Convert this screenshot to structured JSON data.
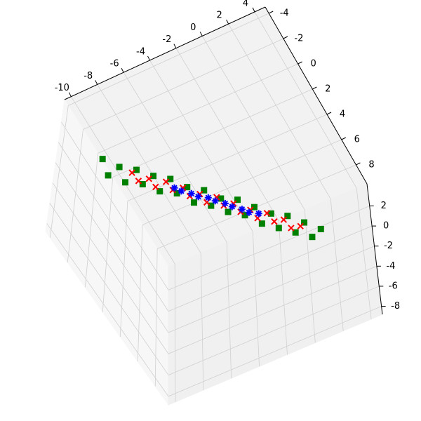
{
  "chart_data": {
    "type": "scatter3d",
    "xlim": [
      -10.5,
      4.8
    ],
    "ylim": [
      -4.5,
      9.5
    ],
    "zlim": [
      -8.8,
      4.2
    ],
    "xticks": [
      -10,
      -8,
      -6,
      -4,
      -2,
      0,
      2,
      4
    ],
    "yticks": [
      -4,
      -2,
      0,
      2,
      4,
      6,
      8
    ],
    "zticks": [
      2,
      0,
      -2,
      -4,
      -6,
      -8
    ],
    "grid": true,
    "series": [
      {
        "color": "green",
        "marker": "s",
        "x": [
          -9.0,
          -8.6,
          -8.2,
          -7.8,
          -7.4,
          -7.0,
          -6.6,
          -6.2,
          -5.8,
          -5.4,
          -5.0,
          -4.6,
          -4.2,
          -3.8,
          -3.4,
          -3.0,
          -2.6,
          -2.2,
          -1.8,
          -1.4,
          -1.0,
          -0.6,
          -0.2,
          0.2,
          0.6,
          1.0,
          1.4
        ],
        "y": [
          -1.6,
          -1.4,
          -0.8,
          -0.6,
          0.0,
          0.2,
          0.8,
          1.0,
          1.6,
          1.8,
          2.4,
          2.6,
          3.2,
          3.4,
          4.0,
          4.2,
          4.8,
          5.0,
          5.6,
          5.8,
          6.4,
          6.6,
          7.2,
          7.4,
          8.0,
          8.2,
          8.8
        ],
        "z": [
          0.9,
          -0.7,
          0.6,
          -0.9,
          0.8,
          -0.6,
          0.7,
          -0.8,
          0.9,
          -0.5,
          0.6,
          -0.9,
          0.8,
          -0.7,
          0.5,
          -0.8,
          0.9,
          -0.6,
          0.7,
          -0.9,
          0.6,
          -0.8,
          0.9,
          -0.7,
          0.8,
          -0.6,
          0.7
        ]
      },
      {
        "color": "red",
        "marker": "x",
        "x": [
          -7.6,
          -7.2,
          -6.8,
          -6.4,
          -6.0,
          -5.6,
          -5.2,
          -4.8,
          -4.4,
          -4.0,
          -3.6,
          -3.2,
          -2.8,
          -2.4,
          -2.0,
          -1.6,
          -1.2,
          -0.8,
          -0.4,
          0.0,
          0.4
        ],
        "y": [
          -0.2,
          0.0,
          0.6,
          0.8,
          1.4,
          1.6,
          2.2,
          2.4,
          3.0,
          3.2,
          3.8,
          4.0,
          4.6,
          4.8,
          5.4,
          5.6,
          6.2,
          6.4,
          7.0,
          7.2,
          7.8
        ],
        "z": [
          0.4,
          -0.4,
          0.3,
          -0.5,
          0.5,
          -0.3,
          0.4,
          -0.4,
          0.3,
          -0.5,
          0.5,
          -0.3,
          0.4,
          -0.4,
          0.3,
          -0.5,
          0.5,
          -0.3,
          0.4,
          -0.4,
          0.3
        ]
      },
      {
        "color": "blue",
        "marker": "*",
        "x": [
          -5.6,
          -5.2,
          -4.8,
          -4.4,
          -4.0,
          -3.6,
          -3.2,
          -2.8,
          -2.4,
          -2.0,
          -1.6
        ],
        "y": [
          1.8,
          2.0,
          2.6,
          2.8,
          3.4,
          3.6,
          4.2,
          4.4,
          5.0,
          5.2,
          5.8
        ],
        "z": [
          0.15,
          -0.15,
          0.1,
          -0.2,
          0.2,
          -0.1,
          0.15,
          -0.15,
          0.1,
          -0.2,
          0.2
        ]
      }
    ]
  }
}
